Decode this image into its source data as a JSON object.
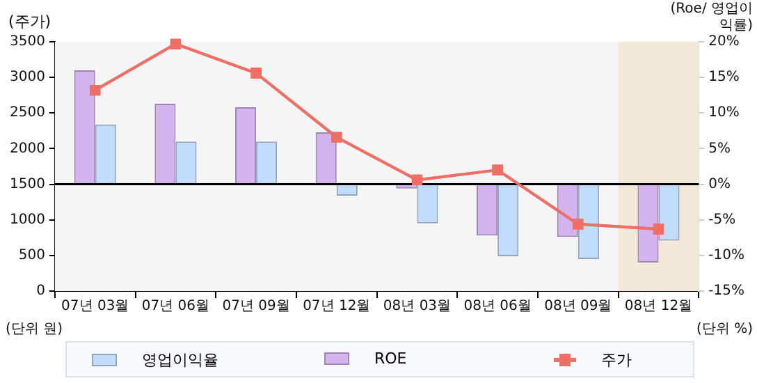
{
  "chart_data": {
    "type": "bar",
    "ylabel": "(주가)",
    "y2label": "(Roe/ 영업이익률)",
    "annotations": [
      "(단위 원)",
      "(단위 %)"
    ],
    "categories": [
      "07년 03월",
      "07년 06월",
      "07년 09월",
      "07년 12월",
      "08년 03월",
      "08년 06월",
      "08년 09월",
      "08년 12월"
    ],
    "series": [
      {
        "name": "영업이익율",
        "axis": "y2",
        "color": "#c2dcfc",
        "values": [
          8.4,
          6.0,
          6.0,
          -1.6,
          -5.5,
          -10.1,
          -10.5,
          -7.9
        ]
      },
      {
        "name": "ROE",
        "axis": "y2",
        "color": "#d5b3ee",
        "values": [
          16.0,
          11.3,
          10.8,
          7.3,
          -0.6,
          -7.2,
          -7.4,
          -11.0
        ]
      },
      {
        "name": "주가",
        "type": "line",
        "color": "#ee6f66",
        "marker": "square",
        "values": [
          2820,
          3470,
          3060,
          2160,
          1560,
          1700,
          940,
          870
        ]
      }
    ],
    "ylim": [
      0,
      3500
    ],
    "yticks": [
      0,
      500,
      1000,
      1500,
      2000,
      2500,
      3000,
      3500
    ],
    "y2lim": [
      -15,
      20
    ],
    "y2ticks": [
      {
        "value": -15,
        "label": "-15%"
      },
      {
        "value": -10,
        "label": "-10%"
      },
      {
        "value": -5,
        "label": "-5%"
      },
      {
        "value": 0,
        "label": "0%"
      },
      {
        "value": 5,
        "label": "5%"
      },
      {
        "value": 10,
        "label": "10%"
      },
      {
        "value": 15,
        "label": "15%"
      },
      {
        "value": 20,
        "label": "20%"
      }
    ],
    "ref_lines": [
      {
        "axis": "y2",
        "value": 0,
        "color": "#000000"
      }
    ],
    "bands": [
      {
        "axis": "x",
        "from": "08년 12월",
        "to": "08년 12월",
        "color": "#f2e8d8"
      }
    ],
    "legend": "bottom"
  }
}
